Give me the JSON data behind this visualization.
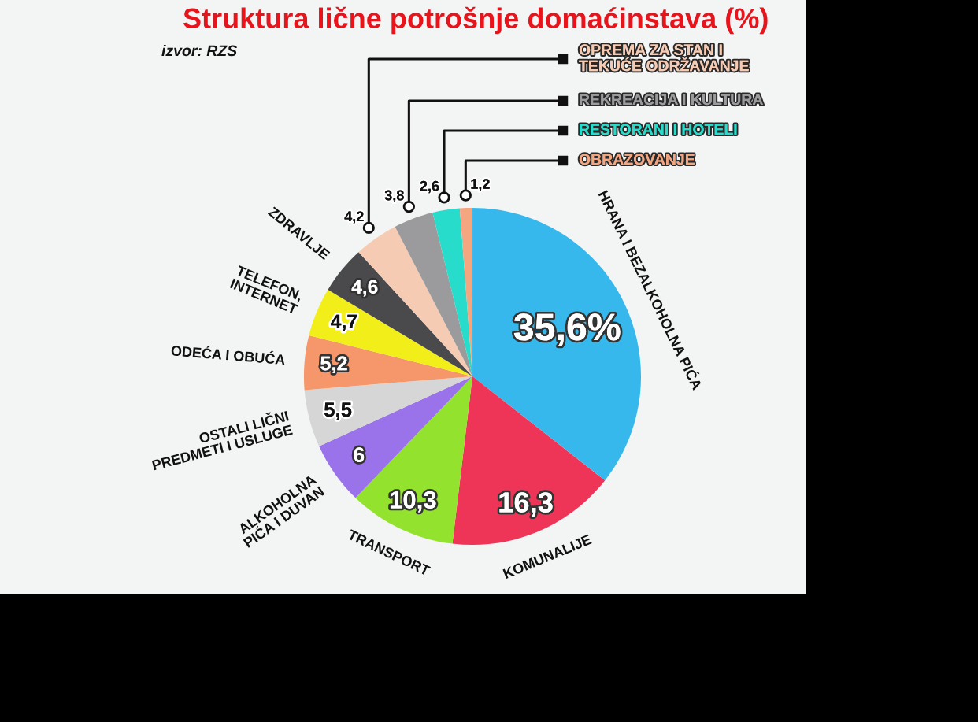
{
  "chart_data": {
    "type": "pie",
    "title": "Struktura lične potrošnje domaćinstava (%)",
    "annotations": [
      "izvor: RZS"
    ],
    "categories": [
      "HRANA I BEZALKOHOLNA PIĆA",
      "KOMUNALIJE",
      "TRANSPORT",
      "ALKOHOLNA\nPIĆA I DUVAN",
      "OSTALI LIČNI\nPREDMETI I USLUGE",
      "ODEĆA I OBUĆA",
      "TELEFON,\nINTERNET",
      "ZDRAVLJE",
      "OPREMA ZA STAN I\nTEKUĆE ODRŽAVANJE",
      "REKREACIJA I KULTURA",
      "RESTORANI I HOTELI",
      "OBRAZOVANJE"
    ],
    "values": [
      35.6,
      16.3,
      10.3,
      6,
      5.5,
      5.2,
      4.7,
      4.6,
      4.2,
      3.8,
      2.6,
      1.2
    ],
    "colors": [
      "#36b8ec",
      "#ee3558",
      "#93e22e",
      "#9a72ea",
      "#d6d6d6",
      "#f5976a",
      "#f2ee1a",
      "#4a4a4d",
      "#f6cbb3",
      "#9b9b9e",
      "#27dccb",
      "#f4a681"
    ],
    "value_labels": [
      "35,6%",
      "16,3",
      "10,3",
      "6",
      "5,5",
      "5,2",
      "4,7",
      "4,6",
      "4,2",
      "3,8",
      "2,6",
      "1,2"
    ]
  }
}
